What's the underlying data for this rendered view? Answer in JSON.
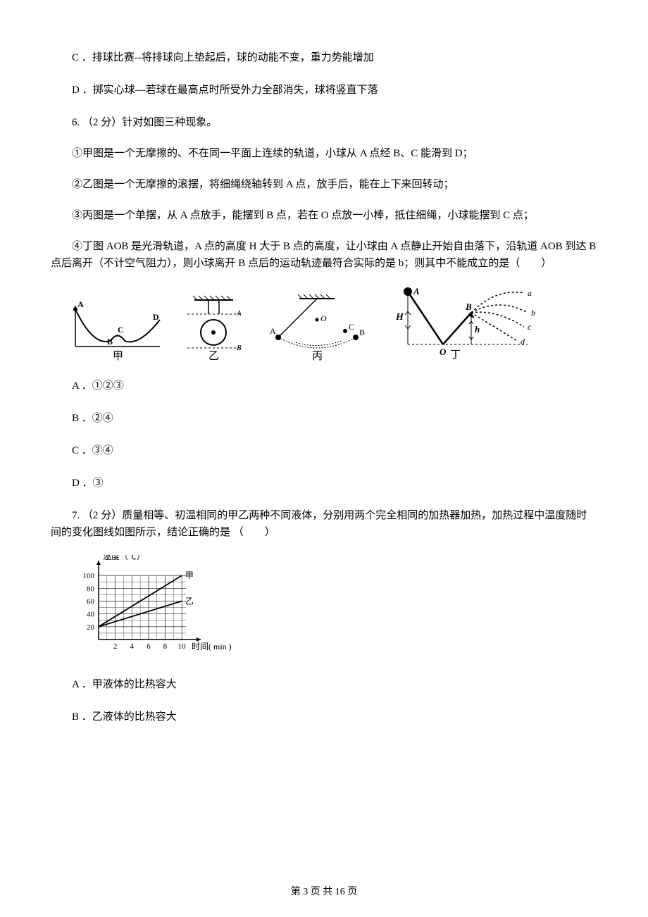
{
  "options": {
    "c_text": "C ．排球比赛--将排球向上垫起后，球的动能不变，重力势能增加",
    "d_text": "D ．掷实心球—若球在最高点时所受外力全部消失，球将竖直下落"
  },
  "q6": {
    "stem": "6. （2 分）针对如图三种现象。",
    "p1": "①甲图是一个无摩擦的、不在同一平面上连续的轨道，小球从 A 点经 B、C 能滑到 D；",
    "p2": "②乙图是一个无摩擦的滚摆，将细绳绕轴转到 A 点，放手后，能在上下来回转动；",
    "p3": "③丙图是一个单摆，从 A 点放手，能摆到 B 点，若在 O 点放一小棒，抵住细绳，小球能摆到 C 点；",
    "p4": "④丁图 AOB 是光滑轨道，A 点的高度 H 大于 B 点的高度，让小球由 A 点静止开始自由落下，沿轨道 AOB 到达 B 点后离开（不计空气阻力），则小球离开 B 点后的运动轨迹最符合实际的是 b；则其中不能成立的是（　　）",
    "figures": {
      "jia": {
        "labels": {
          "A": "A",
          "B": "B",
          "C": "C",
          "D": "D",
          "caption": "甲"
        }
      },
      "yi": {
        "labels": {
          "A": "A",
          "B": "B",
          "caption": "乙"
        }
      },
      "bing": {
        "labels": {
          "A": "A",
          "B": "B",
          "C": "C",
          "O": "O",
          "caption": "丙"
        }
      },
      "ding": {
        "labels": {
          "A": "A",
          "B": "B",
          "O": "O",
          "H": "H",
          "h": "h",
          "a": "a",
          "b": "b",
          "c": "c",
          "d": "d",
          "caption": "丁"
        }
      }
    },
    "opts": {
      "a": "A ．①②③",
      "b": "B ．②④",
      "c": "C ．③④",
      "d": "D ．③"
    }
  },
  "q7": {
    "stem": "7. （2 分）质量相等、初温相同的甲乙两种不同液体，分别用两个完全相同的加热器加热，加热过程中温度随时间的变化图线如图所示，结论正确的是 （　　）",
    "chart": {
      "type": "line",
      "xlabel": "时间( min )",
      "ylabel": "温度（℃）",
      "xticks": [
        2,
        4,
        6,
        8,
        10
      ],
      "yticks": [
        20,
        40,
        60,
        80,
        100
      ],
      "xlim": [
        0,
        11
      ],
      "ylim": [
        0,
        110
      ],
      "series": [
        {
          "name": "甲",
          "points": [
            [
              0,
              20
            ],
            [
              10,
              100
            ]
          ],
          "label_pos": [
            10.4,
            100
          ]
        },
        {
          "name": "乙",
          "points": [
            [
              0,
              20
            ],
            [
              10,
              60
            ]
          ],
          "label_pos": [
            10.4,
            60
          ]
        }
      ],
      "grid_color": "#222222",
      "line_color": "#000000",
      "background": "#ffffff",
      "axis_fontsize": 11,
      "label_fontsize": 12
    },
    "opts": {
      "a": "A ．甲液体的比热容大",
      "b": "B ．乙液体的比热容大"
    }
  },
  "footer": "第 3 页 共 16 页"
}
